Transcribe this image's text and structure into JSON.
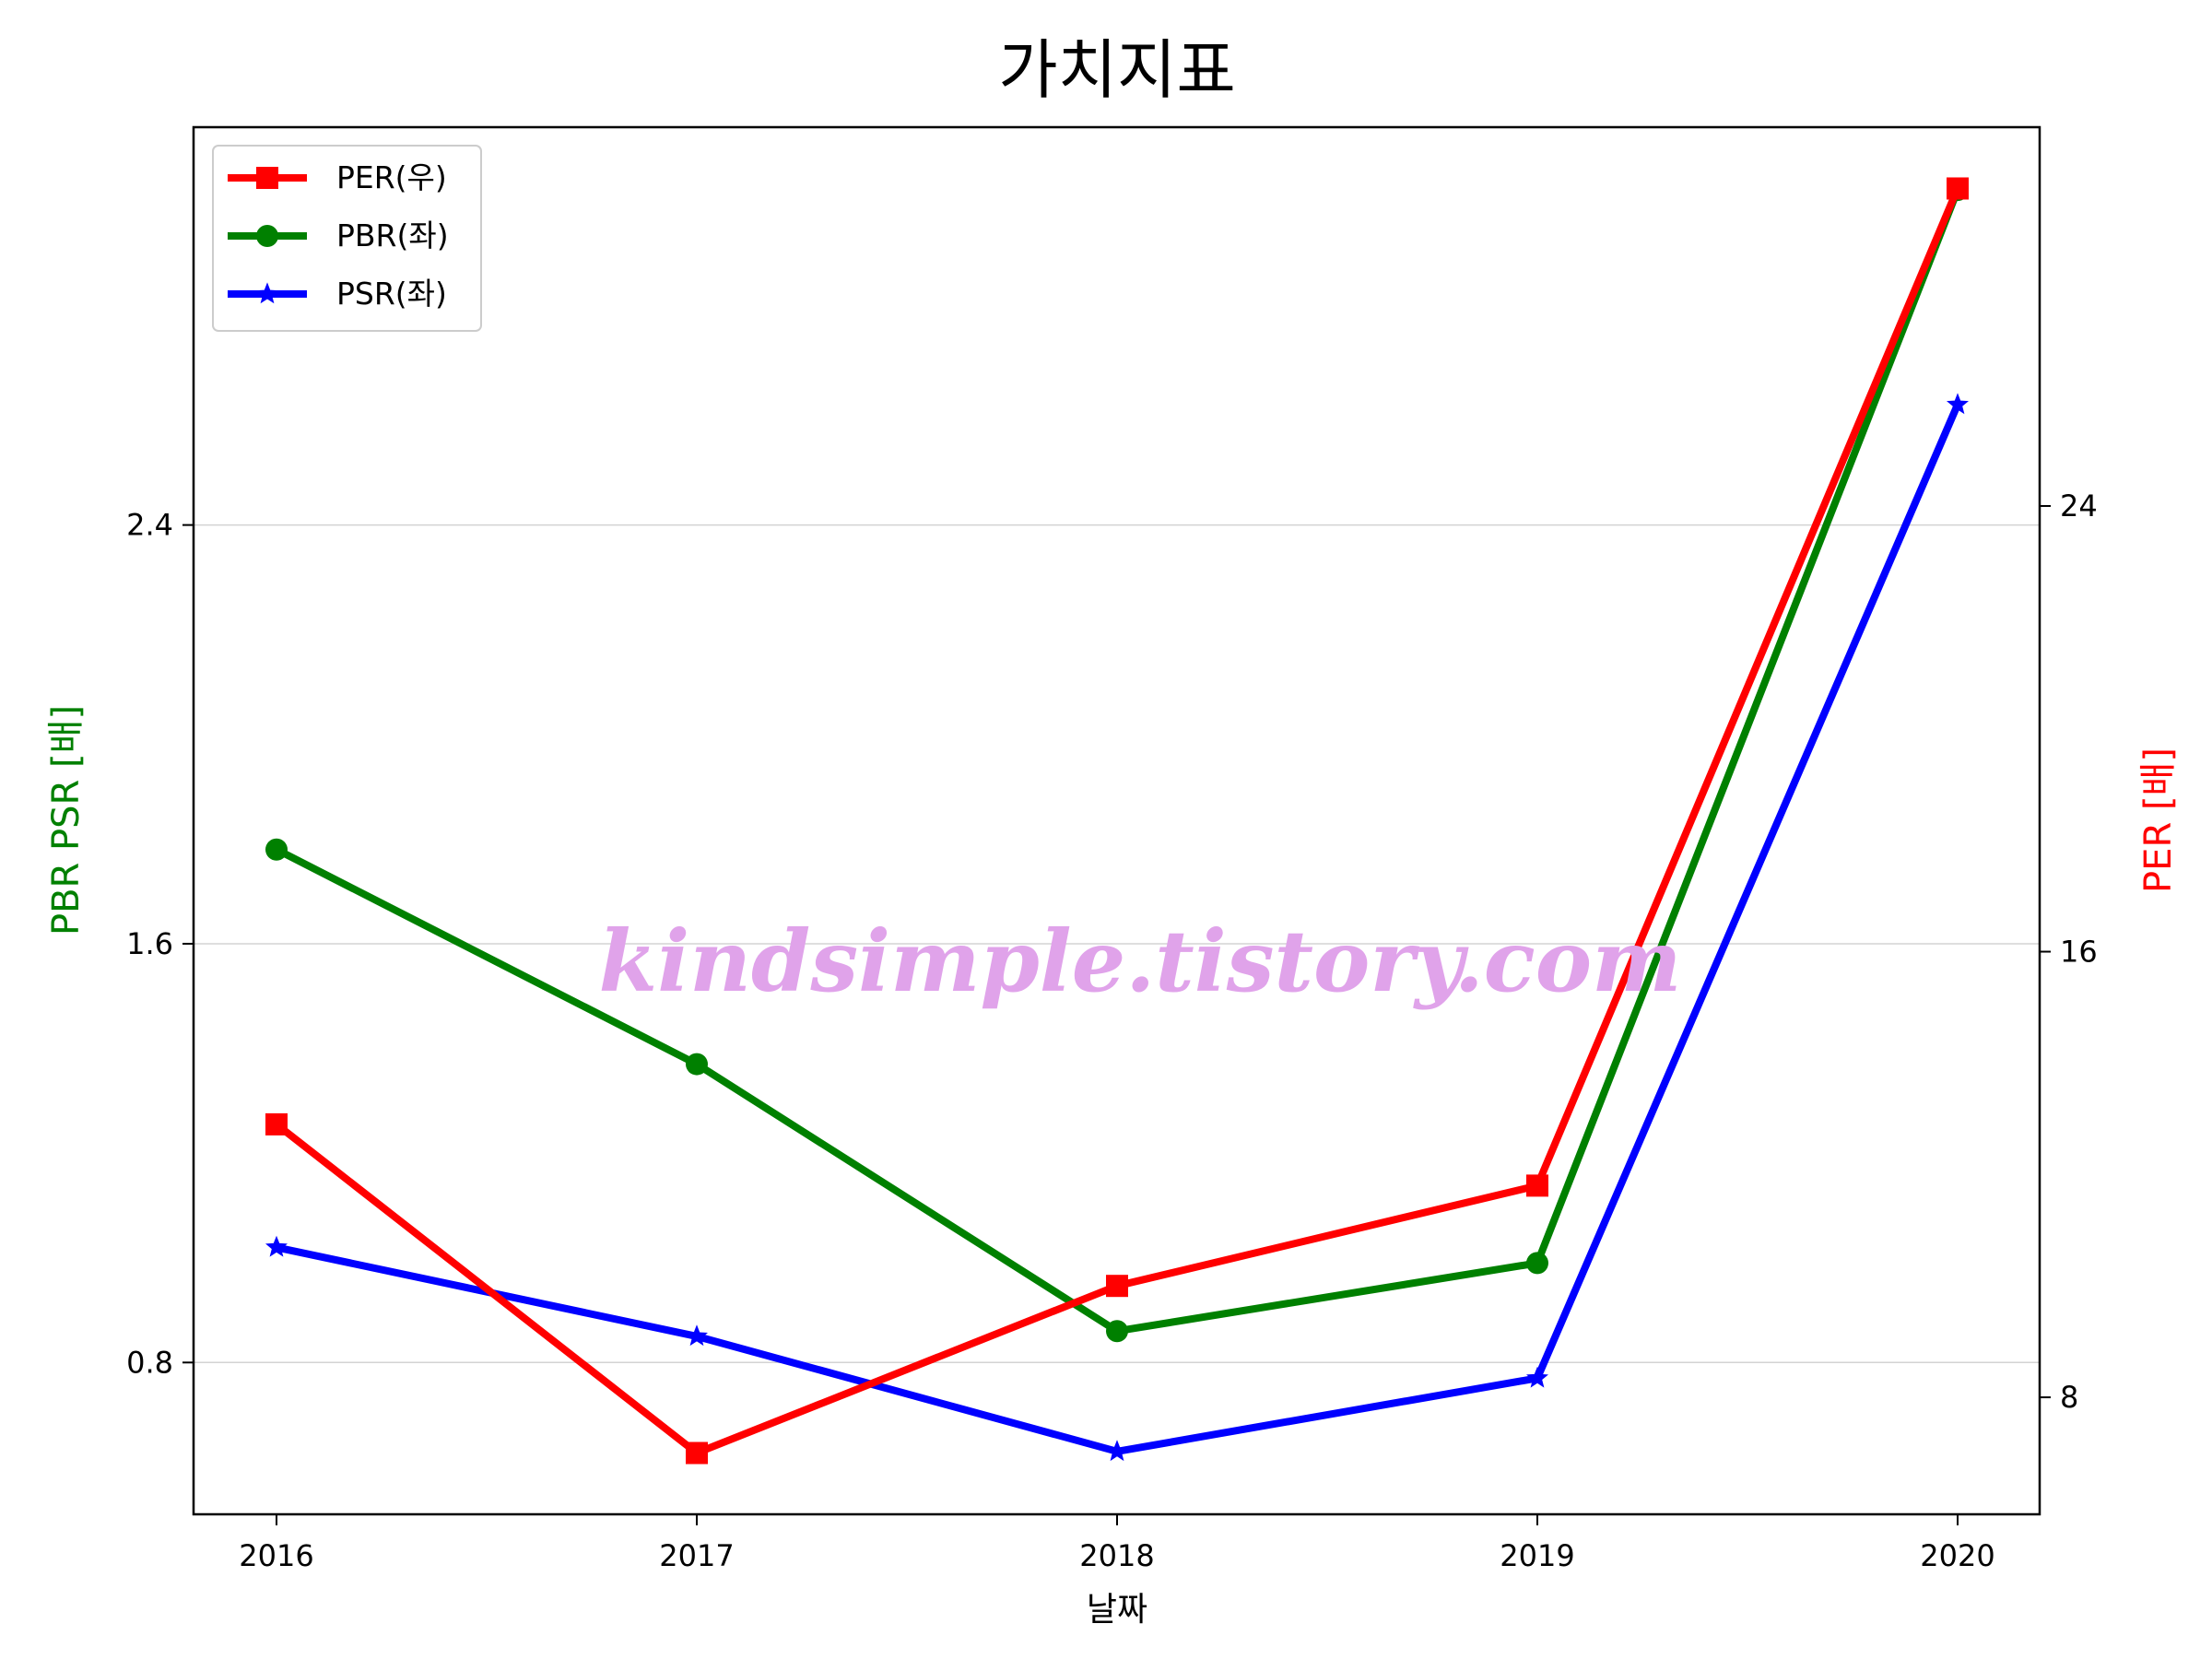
{
  "chart_data": {
    "type": "line",
    "title": "가치지표",
    "xlabel": "날짜",
    "ylabel_left": "PBR PSR [배]",
    "ylabel_right": "PER [배]",
    "categories": [
      "2016",
      "2017",
      "2018",
      "2019",
      "2020"
    ],
    "left_axis": {
      "ylim": [
        0.51,
        3.16
      ],
      "ticks": [
        0.8,
        1.6,
        2.4
      ],
      "tick_labels": [
        "0.8",
        "1.6",
        "2.4"
      ]
    },
    "right_axis": {
      "ylim": [
        5.9,
        30.8
      ],
      "ticks": [
        8,
        16,
        24
      ],
      "tick_labels": [
        "8",
        "16",
        "24"
      ]
    },
    "series": [
      {
        "name": "PER(우)",
        "axis": "right",
        "color": "#ff0000",
        "marker": "square",
        "values": [
          12.9,
          7.0,
          10.0,
          11.8,
          29.7
        ]
      },
      {
        "name": "PBR(좌)",
        "axis": "left",
        "color": "#008000",
        "marker": "circle",
        "values": [
          1.78,
          1.37,
          0.86,
          0.99,
          3.04
        ]
      },
      {
        "name": "PSR(좌)",
        "axis": "left",
        "color": "#0000ff",
        "marker": "star",
        "values": [
          1.02,
          0.85,
          0.63,
          0.77,
          2.63
        ]
      }
    ],
    "grid": "horizontal (left axis)",
    "legend_position": "top-left",
    "watermark": "kindsimple.tistory.com",
    "watermark_color": "#e0a3ea"
  }
}
